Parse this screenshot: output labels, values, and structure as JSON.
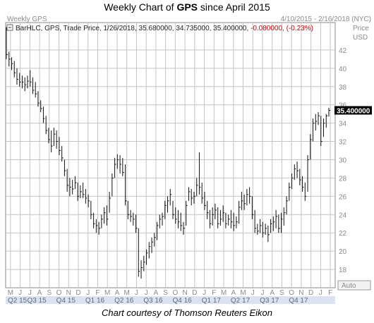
{
  "title": {
    "prefix": "Weekly Chart of ",
    "ticker": "GPS",
    "suffix": " since April 2015"
  },
  "header": {
    "left_label": "Weekly GPS",
    "date_range": "4/10/2015 - 2/16/2018 (NYC)",
    "series_text": "BarHLC, GPS, Trade Price,  1/26/2018, 35.680000, 34.735000, 35.400000,",
    "change_text": "-0.080000, (-0.23%)",
    "price_label": "Price",
    "currency_label": "USD"
  },
  "colors": {
    "grid": "#c4c4c4",
    "bars": "#111111",
    "change_negative": "#cc0000",
    "last_price_box": "#000000",
    "quarter_bar": "#dbe3f0"
  },
  "auto_label": "Auto",
  "caption": "Chart courtesy of Thomson Reuters Eikon",
  "chart_data": {
    "type": "bar",
    "style": "HLC",
    "ylim": [
      16,
      45
    ],
    "y_ticks": [
      18,
      20,
      22,
      24,
      26,
      28,
      30,
      32,
      34,
      36,
      38,
      40,
      42
    ],
    "y_tick_labels": [
      "18",
      "20",
      "22",
      "24",
      "26",
      "28",
      "30",
      "32",
      "34",
      "36",
      "38",
      "40",
      "42"
    ],
    "last_price": 35.4,
    "last_price_label": "35.400000",
    "month_labels": [
      "M",
      "J",
      "J",
      "A",
      "S",
      "O",
      "N",
      "D",
      "J",
      "F",
      "M",
      "A",
      "M",
      "J",
      "J",
      "A",
      "S",
      "O",
      "N",
      "D",
      "J",
      "F",
      "M",
      "A",
      "M",
      "J",
      "J",
      "A",
      "S",
      "O",
      "N",
      "D",
      "J",
      "F"
    ],
    "quarter_labels": [
      "Q2 15",
      "Q3 15",
      "Q4 15",
      "Q1 16",
      "Q2 16",
      "Q3 16",
      "Q4 16",
      "Q1 17",
      "Q2 17",
      "Q3 17",
      "Q4 17"
    ],
    "quarter_month_index": [
      0,
      2,
      5,
      8,
      11,
      14,
      17,
      20,
      23,
      26,
      29
    ],
    "grid": true,
    "weeks": [
      {
        "h": 44.5,
        "l": 41.0,
        "c": 41.5
      },
      {
        "h": 41.8,
        "l": 40.2,
        "c": 41.0
      },
      {
        "h": 41.2,
        "l": 39.8,
        "c": 40.5
      },
      {
        "h": 40.8,
        "l": 39.0,
        "c": 39.5
      },
      {
        "h": 40.0,
        "l": 38.2,
        "c": 38.8
      },
      {
        "h": 39.5,
        "l": 38.0,
        "c": 38.5
      },
      {
        "h": 39.2,
        "l": 37.8,
        "c": 38.5
      },
      {
        "h": 39.0,
        "l": 37.5,
        "c": 38.2
      },
      {
        "h": 39.2,
        "l": 37.8,
        "c": 38.6
      },
      {
        "h": 39.8,
        "l": 38.0,
        "c": 38.5
      },
      {
        "h": 39.0,
        "l": 37.2,
        "c": 37.6
      },
      {
        "h": 38.5,
        "l": 36.8,
        "c": 37.2
      },
      {
        "h": 37.5,
        "l": 35.8,
        "c": 36.2
      },
      {
        "h": 36.5,
        "l": 35.2,
        "c": 35.6
      },
      {
        "h": 35.8,
        "l": 34.0,
        "c": 34.5
      },
      {
        "h": 34.8,
        "l": 32.8,
        "c": 33.2
      },
      {
        "h": 33.5,
        "l": 31.8,
        "c": 32.2
      },
      {
        "h": 33.2,
        "l": 30.8,
        "c": 31.5
      },
      {
        "h": 33.5,
        "l": 31.5,
        "c": 32.8
      },
      {
        "h": 33.2,
        "l": 31.2,
        "c": 32.0
      },
      {
        "h": 32.5,
        "l": 30.5,
        "c": 31.0
      },
      {
        "h": 31.5,
        "l": 29.8,
        "c": 30.2
      },
      {
        "h": 30.0,
        "l": 28.2,
        "c": 28.8
      },
      {
        "h": 29.0,
        "l": 26.5,
        "c": 27.2
      },
      {
        "h": 28.0,
        "l": 26.0,
        "c": 27.0
      },
      {
        "h": 27.8,
        "l": 26.2,
        "c": 26.8
      },
      {
        "h": 28.2,
        "l": 26.8,
        "c": 27.5
      },
      {
        "h": 27.5,
        "l": 25.5,
        "c": 26.0
      },
      {
        "h": 27.2,
        "l": 25.8,
        "c": 26.5
      },
      {
        "h": 27.5,
        "l": 25.8,
        "c": 26.2
      },
      {
        "h": 26.8,
        "l": 25.2,
        "c": 25.8
      },
      {
        "h": 26.2,
        "l": 24.8,
        "c": 25.5
      },
      {
        "h": 25.5,
        "l": 23.5,
        "c": 24.0
      },
      {
        "h": 24.2,
        "l": 22.5,
        "c": 23.0
      },
      {
        "h": 23.5,
        "l": 22.0,
        "c": 22.8
      },
      {
        "h": 23.2,
        "l": 21.8,
        "c": 22.5
      },
      {
        "h": 24.0,
        "l": 22.5,
        "c": 23.5
      },
      {
        "h": 24.8,
        "l": 23.0,
        "c": 24.2
      },
      {
        "h": 25.0,
        "l": 22.8,
        "c": 23.5
      },
      {
        "h": 26.5,
        "l": 24.2,
        "c": 25.8
      },
      {
        "h": 28.5,
        "l": 26.0,
        "c": 28.0
      },
      {
        "h": 30.2,
        "l": 28.0,
        "c": 29.5
      },
      {
        "h": 30.6,
        "l": 29.0,
        "c": 30.0
      },
      {
        "h": 30.5,
        "l": 28.5,
        "c": 29.5
      },
      {
        "h": 30.2,
        "l": 28.2,
        "c": 28.6
      },
      {
        "h": 29.5,
        "l": 25.0,
        "c": 25.5
      },
      {
        "h": 25.5,
        "l": 23.5,
        "c": 24.0
      },
      {
        "h": 24.5,
        "l": 23.2,
        "c": 23.8
      },
      {
        "h": 24.2,
        "l": 22.8,
        "c": 23.5
      },
      {
        "h": 24.0,
        "l": 22.0,
        "c": 22.5
      },
      {
        "h": 22.5,
        "l": 17.2,
        "c": 17.8
      },
      {
        "h": 19.0,
        "l": 17.0,
        "c": 18.2
      },
      {
        "h": 19.5,
        "l": 17.8,
        "c": 18.8
      },
      {
        "h": 20.2,
        "l": 18.5,
        "c": 19.8
      },
      {
        "h": 21.0,
        "l": 19.2,
        "c": 20.5
      },
      {
        "h": 21.5,
        "l": 19.8,
        "c": 21.0
      },
      {
        "h": 22.0,
        "l": 20.5,
        "c": 21.5
      },
      {
        "h": 23.2,
        "l": 21.2,
        "c": 22.8
      },
      {
        "h": 24.0,
        "l": 22.5,
        "c": 23.5
      },
      {
        "h": 24.2,
        "l": 22.8,
        "c": 23.8
      },
      {
        "h": 25.5,
        "l": 23.5,
        "c": 25.0
      },
      {
        "h": 26.0,
        "l": 24.2,
        "c": 25.5
      },
      {
        "h": 26.8,
        "l": 25.0,
        "c": 26.2
      },
      {
        "h": 25.5,
        "l": 23.5,
        "c": 24.0
      },
      {
        "h": 24.8,
        "l": 23.0,
        "c": 23.5
      },
      {
        "h": 24.5,
        "l": 22.5,
        "c": 23.2
      },
      {
        "h": 24.2,
        "l": 22.2,
        "c": 22.8
      },
      {
        "h": 23.2,
        "l": 21.8,
        "c": 22.5
      },
      {
        "h": 25.5,
        "l": 22.8,
        "c": 25.0
      },
      {
        "h": 27.0,
        "l": 25.5,
        "c": 26.5
      },
      {
        "h": 26.8,
        "l": 25.0,
        "c": 25.8
      },
      {
        "h": 26.5,
        "l": 25.2,
        "c": 26.0
      },
      {
        "h": 28.0,
        "l": 26.0,
        "c": 27.2
      },
      {
        "h": 30.8,
        "l": 26.2,
        "c": 27.0
      },
      {
        "h": 27.5,
        "l": 25.2,
        "c": 25.8
      },
      {
        "h": 26.5,
        "l": 24.5,
        "c": 25.0
      },
      {
        "h": 25.5,
        "l": 23.5,
        "c": 24.2
      },
      {
        "h": 24.5,
        "l": 22.5,
        "c": 23.0
      },
      {
        "h": 24.8,
        "l": 22.8,
        "c": 24.0
      },
      {
        "h": 25.2,
        "l": 23.5,
        "c": 24.5
      },
      {
        "h": 24.8,
        "l": 22.5,
        "c": 23.0
      },
      {
        "h": 24.5,
        "l": 22.8,
        "c": 23.5
      },
      {
        "h": 25.0,
        "l": 23.2,
        "c": 24.2
      },
      {
        "h": 24.2,
        "l": 22.5,
        "c": 23.0
      },
      {
        "h": 24.0,
        "l": 22.8,
        "c": 23.5
      },
      {
        "h": 24.5,
        "l": 22.5,
        "c": 23.2
      },
      {
        "h": 24.2,
        "l": 22.2,
        "c": 22.8
      },
      {
        "h": 23.8,
        "l": 22.5,
        "c": 23.2
      },
      {
        "h": 25.5,
        "l": 23.0,
        "c": 24.8
      },
      {
        "h": 26.5,
        "l": 24.5,
        "c": 25.5
      },
      {
        "h": 26.2,
        "l": 24.5,
        "c": 25.2
      },
      {
        "h": 26.8,
        "l": 25.0,
        "c": 26.2
      },
      {
        "h": 27.0,
        "l": 25.2,
        "c": 26.0
      },
      {
        "h": 26.0,
        "l": 23.5,
        "c": 24.0
      },
      {
        "h": 24.5,
        "l": 22.0,
        "c": 22.5
      },
      {
        "h": 23.0,
        "l": 21.8,
        "c": 22.2
      },
      {
        "h": 23.5,
        "l": 22.0,
        "c": 22.8
      },
      {
        "h": 23.2,
        "l": 21.5,
        "c": 22.0
      },
      {
        "h": 23.0,
        "l": 21.8,
        "c": 22.5
      },
      {
        "h": 22.8,
        "l": 21.0,
        "c": 21.8
      },
      {
        "h": 23.5,
        "l": 22.0,
        "c": 23.0
      },
      {
        "h": 23.8,
        "l": 22.2,
        "c": 23.2
      },
      {
        "h": 24.5,
        "l": 22.5,
        "c": 23.8
      },
      {
        "h": 24.0,
        "l": 22.0,
        "c": 22.5
      },
      {
        "h": 24.2,
        "l": 22.0,
        "c": 23.5
      },
      {
        "h": 24.8,
        "l": 22.8,
        "c": 24.2
      },
      {
        "h": 26.0,
        "l": 24.0,
        "c": 25.5
      },
      {
        "h": 27.5,
        "l": 25.5,
        "c": 27.0
      },
      {
        "h": 28.5,
        "l": 26.8,
        "c": 28.0
      },
      {
        "h": 29.5,
        "l": 27.8,
        "c": 29.0
      },
      {
        "h": 29.8,
        "l": 28.0,
        "c": 28.8
      },
      {
        "h": 29.0,
        "l": 27.2,
        "c": 27.8
      },
      {
        "h": 28.2,
        "l": 26.5,
        "c": 27.0
      },
      {
        "h": 27.5,
        "l": 25.5,
        "c": 26.0
      },
      {
        "h": 30.5,
        "l": 26.5,
        "c": 30.0
      },
      {
        "h": 32.8,
        "l": 30.0,
        "c": 32.2
      },
      {
        "h": 34.5,
        "l": 32.0,
        "c": 34.0
      },
      {
        "h": 35.0,
        "l": 33.2,
        "c": 34.2
      },
      {
        "h": 35.2,
        "l": 33.8,
        "c": 34.8
      },
      {
        "h": 34.8,
        "l": 31.5,
        "c": 32.0
      },
      {
        "h": 34.5,
        "l": 32.5,
        "c": 34.0
      },
      {
        "h": 35.0,
        "l": 33.5,
        "c": 34.8
      },
      {
        "h": 35.68,
        "l": 34.735,
        "c": 35.4
      }
    ]
  }
}
